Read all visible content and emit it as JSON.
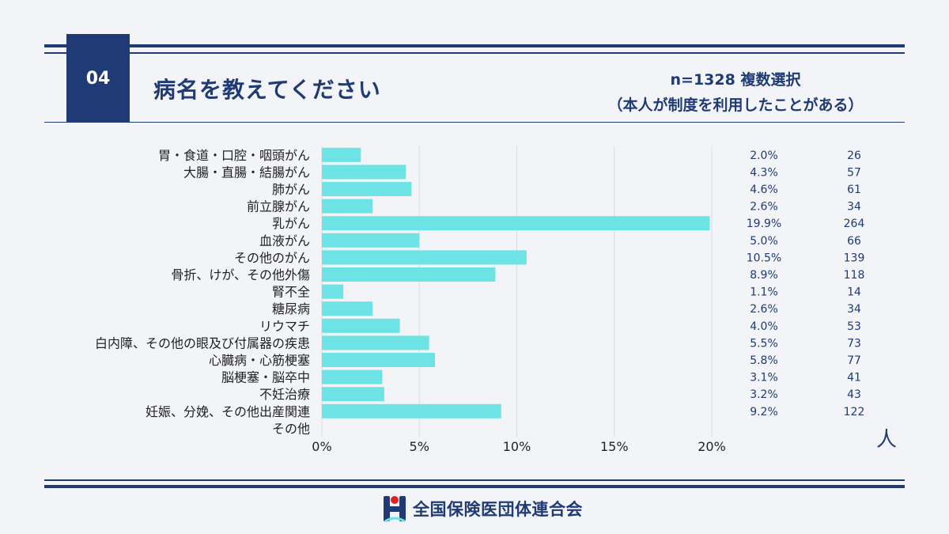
{
  "header": {
    "number": "04",
    "title": "病名を教えてください",
    "sample": "n=1328 複数選択",
    "note": "（本人が制度を利用したことがある）"
  },
  "unit_label": "人",
  "footer": {
    "org_name": "全国保険医団体連合会",
    "logo_icon": "federation-logo-icon"
  },
  "colors": {
    "navy": "#1f3a74",
    "bar": "#6ee3e6",
    "grid": "#d8dbe0"
  },
  "chart_data": {
    "type": "bar",
    "orientation": "horizontal",
    "categories": [
      "胃・食道・口腔・咽頭がん",
      "大腸・直腸・結腸がん",
      "肺がん",
      "前立腺がん",
      "乳がん",
      "血液がん",
      "その他のがん",
      "骨折、けが、その他外傷",
      "腎不全",
      "糖尿病",
      "リウマチ",
      "白内障、その他の眼及び付属器の疾患",
      "心臓病・心筋梗塞",
      "脳梗塞・脳卒中",
      "不妊治療",
      "妊娠、分娩、その他出産関連",
      "その他"
    ],
    "values": [
      2.0,
      4.3,
      4.6,
      2.6,
      19.9,
      5.0,
      10.5,
      8.9,
      1.1,
      2.6,
      4.0,
      5.5,
      5.8,
      3.1,
      3.2,
      9.2,
      null
    ],
    "percent_labels": [
      "2.0%",
      "4.3%",
      "4.6%",
      "2.6%",
      "19.9%",
      "5.0%",
      "10.5%",
      "8.9%",
      "1.1%",
      "2.6%",
      "4.0%",
      "5.5%",
      "5.8%",
      "3.1%",
      "3.2%",
      "9.2%",
      ""
    ],
    "counts": [
      26,
      57,
      61,
      34,
      264,
      66,
      139,
      118,
      14,
      34,
      53,
      73,
      77,
      41,
      43,
      122,
      null
    ],
    "x_ticks": [
      "0%",
      "5%",
      "10%",
      "15%",
      "20%"
    ],
    "xlim": [
      0,
      20
    ],
    "xlabel": "",
    "ylabel": "",
    "grid": true
  }
}
